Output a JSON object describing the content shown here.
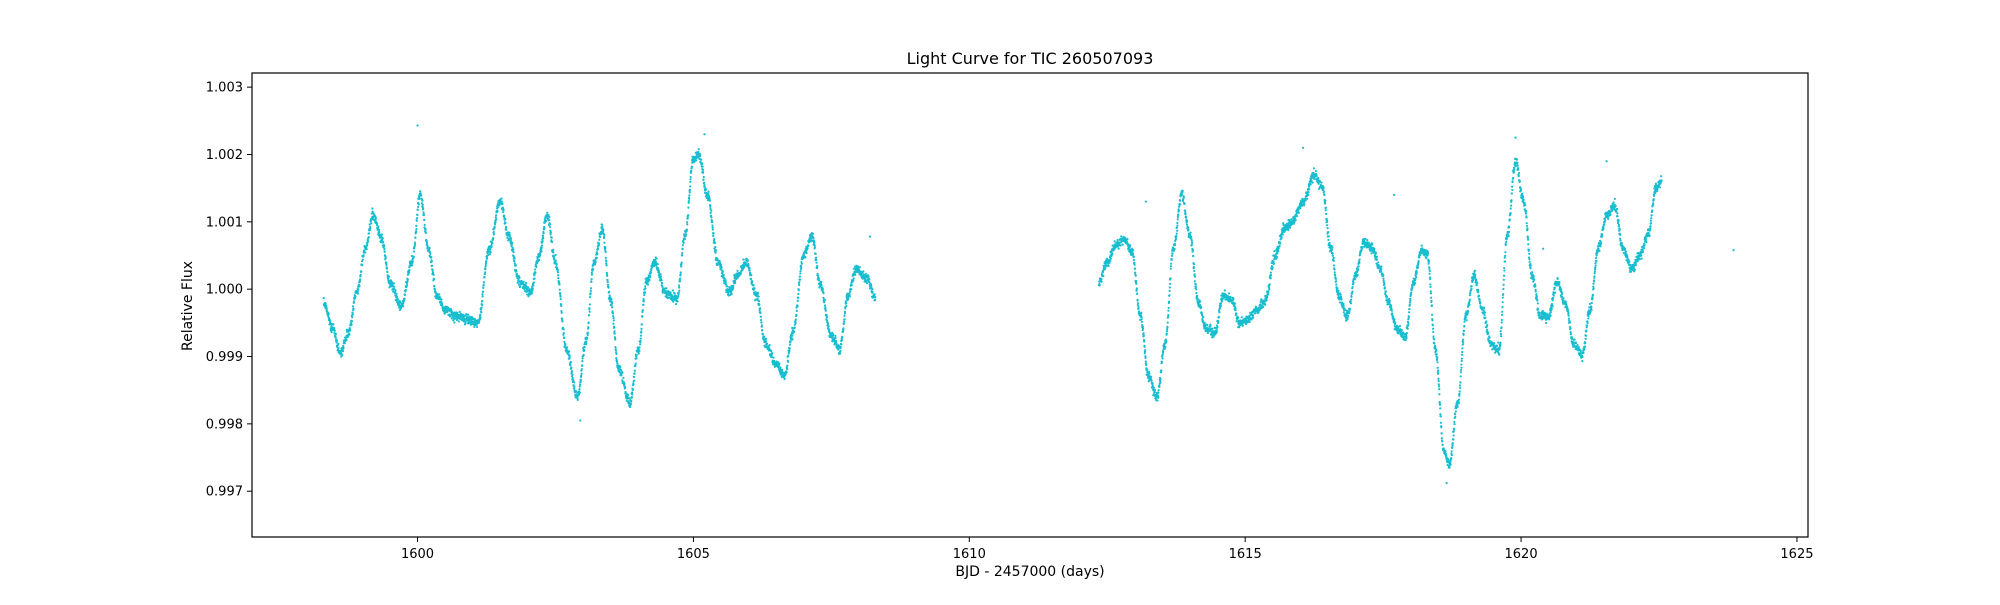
{
  "chart_data": {
    "type": "scatter",
    "title": "Light Curve for TIC 260507093",
    "xlabel": "BJD - 2457000 (days)",
    "ylabel": "Relative Flux",
    "xlim": [
      1597.0,
      1625.2
    ],
    "ylim": [
      0.99632,
      1.00321
    ],
    "x_ticks": [
      {
        "value": 1600,
        "label": "1600"
      },
      {
        "value": 1605,
        "label": "1605"
      },
      {
        "value": 1610,
        "label": "1610"
      },
      {
        "value": 1615,
        "label": "1615"
      },
      {
        "value": 1620,
        "label": "1620"
      },
      {
        "value": 1625,
        "label": "1625"
      }
    ],
    "y_ticks": [
      {
        "value": 0.997,
        "label": "0.997"
      },
      {
        "value": 0.998,
        "label": "0.998"
      },
      {
        "value": 0.999,
        "label": "0.999"
      },
      {
        "value": 1.0,
        "label": "1.000"
      },
      {
        "value": 1.001,
        "label": "1.001"
      },
      {
        "value": 1.002,
        "label": "1.002"
      },
      {
        "value": 1.003,
        "label": "1.003"
      }
    ],
    "grid": false,
    "legend": "none",
    "marker_color": "#17becf",
    "series": [
      {
        "segment": 1,
        "points": [
          [
            1598.3,
            0.9998
          ],
          [
            1598.45,
            0.99945
          ],
          [
            1598.6,
            0.99905
          ],
          [
            1598.75,
            0.99935
          ],
          [
            1598.9,
            0.99995
          ],
          [
            1599.05,
            1.0006
          ],
          [
            1599.2,
            1.0011
          ],
          [
            1599.35,
            1.00075
          ],
          [
            1599.5,
            1.0001
          ],
          [
            1599.7,
            0.99975
          ],
          [
            1599.9,
            1.0004
          ],
          [
            1600.05,
            1.0014
          ],
          [
            1600.2,
            1.0006
          ],
          [
            1600.35,
            0.9999
          ],
          [
            1600.5,
            0.9997
          ],
          [
            1600.7,
            0.9996
          ],
          [
            1600.9,
            0.99955
          ],
          [
            1601.1,
            0.9995
          ],
          [
            1601.3,
            1.0006
          ],
          [
            1601.5,
            1.0013
          ],
          [
            1601.65,
            1.0008
          ],
          [
            1601.85,
            1.0001
          ],
          [
            1602.05,
            0.99995
          ],
          [
            1602.2,
            1.0005
          ],
          [
            1602.35,
            1.0011
          ],
          [
            1602.5,
            1.0004
          ],
          [
            1602.7,
            0.9991
          ],
          [
            1602.9,
            0.9984
          ],
          [
            1603.05,
            0.9992
          ],
          [
            1603.2,
            1.0004
          ],
          [
            1603.35,
            1.0009
          ],
          [
            1603.5,
            0.9998
          ],
          [
            1603.65,
            0.9988
          ],
          [
            1603.85,
            0.9983
          ],
          [
            1604.0,
            0.9991
          ],
          [
            1604.15,
            1.0001
          ],
          [
            1604.3,
            1.0004
          ],
          [
            1604.5,
            0.99995
          ],
          [
            1604.7,
            0.99985
          ],
          [
            1604.85,
            1.0008
          ],
          [
            1605.0,
            1.00195
          ],
          [
            1605.1,
            1.002
          ],
          [
            1605.25,
            1.0014
          ],
          [
            1605.45,
            1.0004
          ],
          [
            1605.65,
            0.99995
          ],
          [
            1605.8,
            1.0002
          ],
          [
            1605.95,
            1.0004
          ],
          [
            1606.15,
            0.9999
          ],
          [
            1606.3,
            0.9992
          ],
          [
            1606.5,
            0.9989
          ],
          [
            1606.65,
            0.9987
          ],
          [
            1606.8,
            0.99935
          ],
          [
            1607.0,
            1.0005
          ],
          [
            1607.15,
            1.0008
          ],
          [
            1607.3,
            1.00005
          ],
          [
            1607.5,
            0.9993
          ],
          [
            1607.65,
            0.9991
          ],
          [
            1607.8,
            0.9999
          ],
          [
            1607.95,
            1.0003
          ],
          [
            1608.15,
            1.00015
          ],
          [
            1608.3,
            0.99985
          ]
        ]
      },
      {
        "segment": 2,
        "points": [
          [
            1612.35,
            1.0001
          ],
          [
            1612.5,
            1.0004
          ],
          [
            1612.65,
            1.00065
          ],
          [
            1612.8,
            1.00075
          ],
          [
            1612.95,
            1.00055
          ],
          [
            1613.1,
            0.9996
          ],
          [
            1613.25,
            0.9987
          ],
          [
            1613.4,
            0.9984
          ],
          [
            1613.55,
            0.9992
          ],
          [
            1613.7,
            1.0006
          ],
          [
            1613.85,
            1.0014
          ],
          [
            1614.0,
            1.0008
          ],
          [
            1614.15,
            0.9998
          ],
          [
            1614.3,
            0.9994
          ],
          [
            1614.45,
            0.99935
          ],
          [
            1614.6,
            0.9999
          ],
          [
            1614.75,
            0.99985
          ],
          [
            1614.9,
            0.9995
          ],
          [
            1615.05,
            0.99955
          ],
          [
            1615.2,
            0.9997
          ],
          [
            1615.35,
            0.9998
          ],
          [
            1615.55,
            1.0005
          ],
          [
            1615.7,
            1.0009
          ],
          [
            1615.85,
            1.001
          ],
          [
            1616.05,
            1.0013
          ],
          [
            1616.25,
            1.0017
          ],
          [
            1616.4,
            1.0015
          ],
          [
            1616.55,
            1.0006
          ],
          [
            1616.7,
            0.9999
          ],
          [
            1616.85,
            0.9996
          ],
          [
            1617.0,
            1.0002
          ],
          [
            1617.15,
            1.0007
          ],
          [
            1617.3,
            1.0006
          ],
          [
            1617.45,
            1.0003
          ],
          [
            1617.6,
            0.9998
          ],
          [
            1617.75,
            0.9994
          ],
          [
            1617.9,
            0.9993
          ],
          [
            1618.05,
            1.0001
          ],
          [
            1618.2,
            1.0006
          ],
          [
            1618.3,
            1.0005
          ],
          [
            1618.45,
            0.9991
          ],
          [
            1618.6,
            0.9976
          ],
          [
            1618.7,
            0.9974
          ],
          [
            1618.85,
            0.9983
          ],
          [
            1619.0,
            0.9996
          ],
          [
            1619.15,
            1.0002
          ],
          [
            1619.3,
            0.9997
          ],
          [
            1619.45,
            0.9992
          ],
          [
            1619.6,
            0.9991
          ],
          [
            1619.75,
            1.0008
          ],
          [
            1619.9,
            1.0019
          ],
          [
            1620.05,
            1.0013
          ],
          [
            1620.2,
            1.0002
          ],
          [
            1620.35,
            0.9996
          ],
          [
            1620.5,
            0.9996
          ],
          [
            1620.65,
            1.0001
          ],
          [
            1620.8,
            0.9998
          ],
          [
            1620.95,
            0.9992
          ],
          [
            1621.1,
            0.999
          ],
          [
            1621.25,
            0.9997
          ],
          [
            1621.4,
            1.0006
          ],
          [
            1621.55,
            1.0011
          ],
          [
            1621.7,
            1.00125
          ],
          [
            1621.85,
            1.0006
          ],
          [
            1622.0,
            1.0003
          ],
          [
            1622.15,
            1.0005
          ],
          [
            1622.3,
            1.0008
          ],
          [
            1622.45,
            1.0015
          ],
          [
            1622.55,
            1.0016
          ]
        ]
      }
    ],
    "outliers": [
      [
        1600.0,
        1.00243
      ],
      [
        1605.2,
        1.0023
      ],
      [
        1613.2,
        1.0013
      ],
      [
        1616.05,
        1.0021
      ],
      [
        1617.7,
        1.0014
      ],
      [
        1619.9,
        1.00225
      ],
      [
        1620.4,
        1.0006
      ],
      [
        1621.55,
        1.0019
      ],
      [
        1608.2,
        1.00078
      ],
      [
        1623.85,
        1.00058
      ],
      [
        1602.95,
        0.99805
      ],
      [
        1618.65,
        0.99712
      ]
    ]
  }
}
